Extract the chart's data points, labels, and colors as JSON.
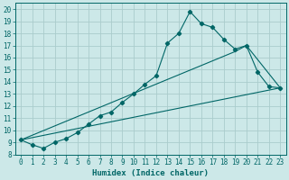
{
  "xlabel": "Humidex (Indice chaleur)",
  "background_color": "#cce8e8",
  "grid_color": "#aacccc",
  "line_color": "#006666",
  "xlim": [
    -0.5,
    23.5
  ],
  "ylim": [
    8,
    20.5
  ],
  "xticks": [
    0,
    1,
    2,
    3,
    4,
    5,
    6,
    7,
    8,
    9,
    10,
    11,
    12,
    13,
    14,
    15,
    16,
    17,
    18,
    19,
    20,
    21,
    22,
    23
  ],
  "yticks": [
    8,
    9,
    10,
    11,
    12,
    13,
    14,
    15,
    16,
    17,
    18,
    19,
    20
  ],
  "line1_x": [
    0,
    1,
    2,
    3,
    4,
    5,
    6,
    7,
    8,
    9,
    10,
    11,
    12,
    13,
    14,
    15,
    16,
    17,
    18,
    19,
    20,
    21,
    22,
    23
  ],
  "line1_y": [
    9.2,
    8.8,
    8.5,
    9.0,
    9.3,
    9.8,
    10.5,
    11.2,
    11.5,
    12.3,
    13.0,
    13.8,
    14.5,
    17.2,
    18.0,
    19.8,
    18.8,
    18.5,
    17.5,
    16.7,
    17.0,
    14.8,
    13.6,
    13.5
  ],
  "line2_x": [
    0,
    23
  ],
  "line2_y": [
    9.2,
    13.5
  ],
  "line3_x": [
    0,
    19,
    20,
    23
  ],
  "line3_y": [
    9.2,
    16.5,
    17.0,
    13.5
  ]
}
